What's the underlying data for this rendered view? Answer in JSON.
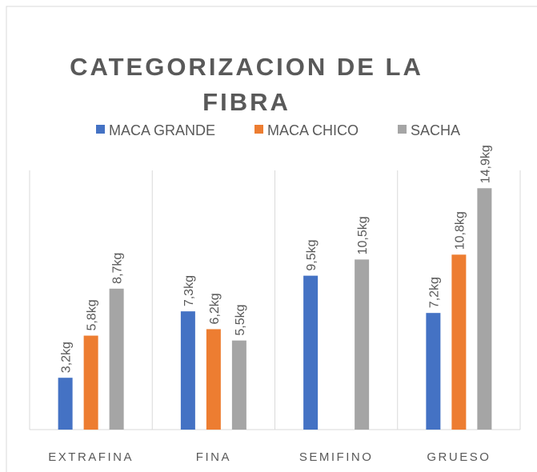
{
  "chart_data": {
    "type": "bar",
    "title": "CATEGORIZACION DE LA FIBRA",
    "categories": [
      "EXTRAFINA",
      "FINA",
      "SEMIFINO",
      "GRUESO"
    ],
    "series": [
      {
        "name": "MACA GRANDE",
        "color": "#4472c4",
        "values": [
          3.2,
          7.3,
          9.5,
          7.2
        ],
        "value_labels": [
          "3,2kg",
          "7,3kg",
          "9,5kg",
          "7,2kg"
        ]
      },
      {
        "name": "MACA CHICO",
        "color": "#ed7d31",
        "values": [
          5.8,
          6.2,
          null,
          10.8
        ],
        "value_labels": [
          "5,8kg",
          "6,2kg",
          null,
          "10,8kg"
        ]
      },
      {
        "name": "SACHA",
        "color": "#a5a5a5",
        "values": [
          8.7,
          5.5,
          10.5,
          14.9
        ],
        "value_labels": [
          "8,7kg",
          "5,5kg",
          "10,5kg",
          "14,9kg"
        ]
      }
    ],
    "ylim": [
      0,
      16
    ],
    "legend": "top"
  }
}
